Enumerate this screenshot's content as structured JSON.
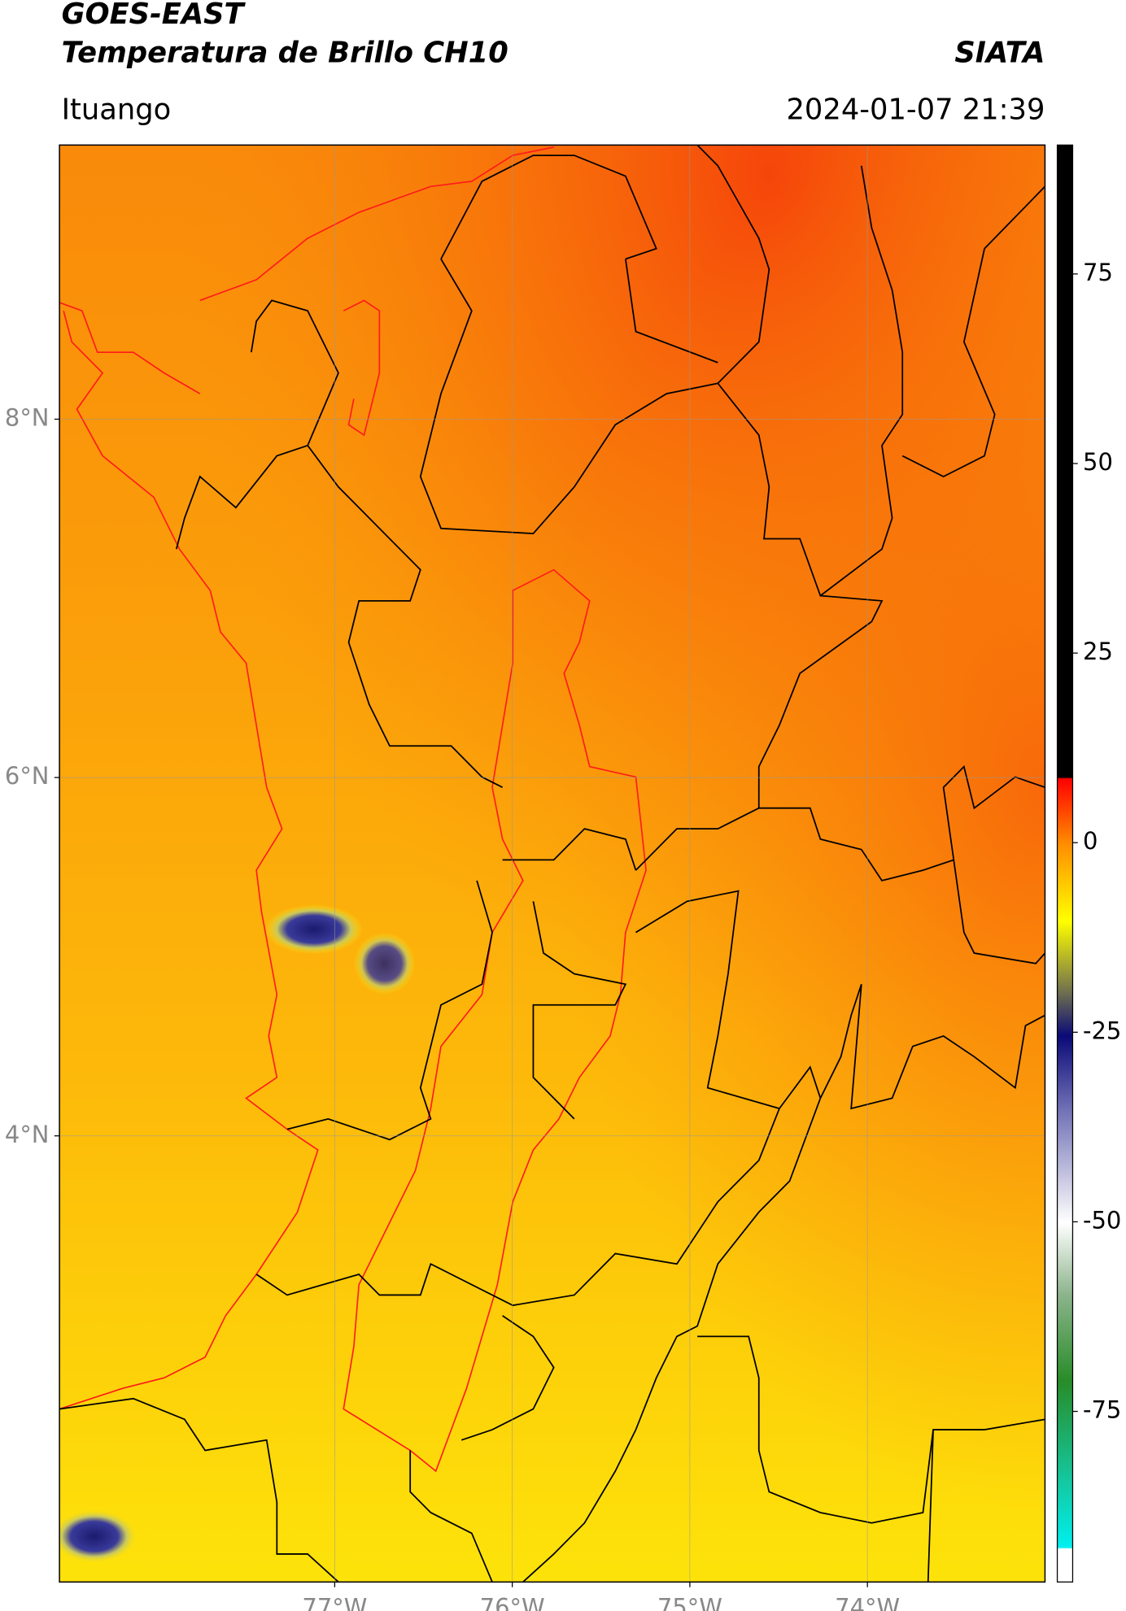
{
  "header": {
    "title": "GOES-EAST",
    "subtitle": "Temperatura de Brillo CH10",
    "brand": "SIATA",
    "location": "Ituango",
    "timestamp": "2024-01-07 21:39"
  },
  "map": {
    "xlim": [
      -78.55,
      -73
    ],
    "ylim": [
      1.51,
      9.53
    ],
    "xticks": [
      {
        "value": -77,
        "label": "77°W"
      },
      {
        "value": -76,
        "label": "76°W"
      },
      {
        "value": -75,
        "label": "75°W"
      },
      {
        "value": -74,
        "label": "74°W"
      }
    ],
    "yticks": [
      {
        "value": 8,
        "label": "8°N"
      },
      {
        "value": 6,
        "label": "6°N"
      },
      {
        "value": 4,
        "label": "4°N"
      }
    ],
    "grid": true
  },
  "colorbar": {
    "lim": [
      -97.5,
      92
    ],
    "ticks": [
      75,
      50,
      25,
      0,
      -25,
      -50,
      -75
    ]
  }
}
